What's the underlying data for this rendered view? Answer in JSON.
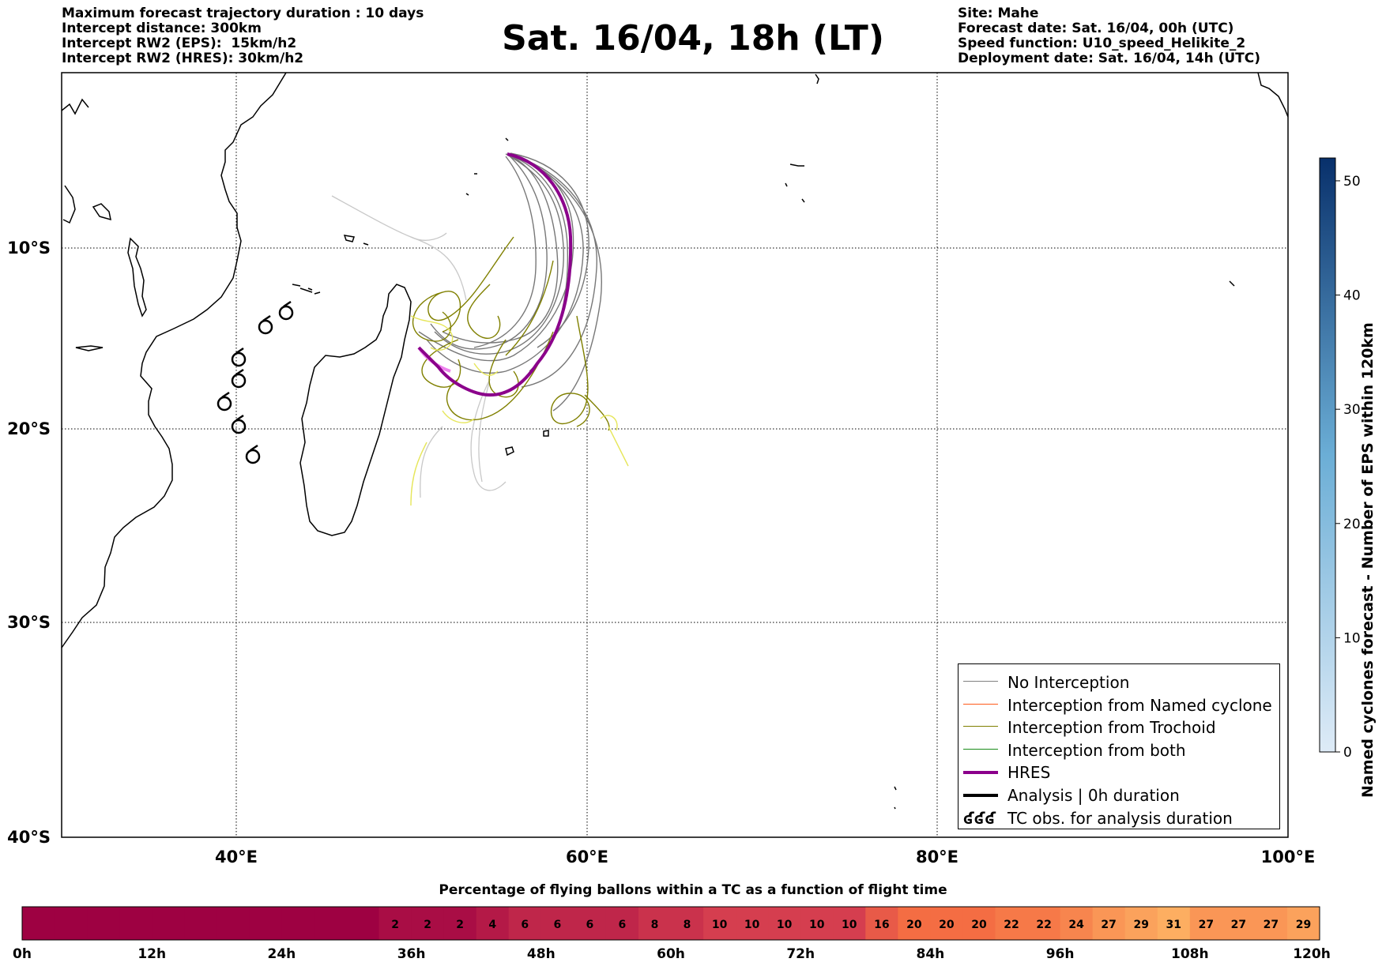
{
  "header_left": [
    "Maximum forecast trajectory duration : 10 days",
    "Intercept distance: 300km",
    "Intercept RW2 (EPS):  15km/h2",
    "Intercept RW2 (HRES): 30km/h2"
  ],
  "header_right": [
    "Site: Mahe",
    "Forecast date: Sat. 16/04, 00h (UTC)",
    "Speed function: U10_speed_Helikite_2",
    "Deployment date: Sat. 16/04, 14h (UTC)"
  ],
  "title": "Sat. 16/04, 18h (LT)",
  "map": {
    "lat_labels": [
      "10°S",
      "20°S",
      "30°S",
      "40°S"
    ],
    "lon_labels": [
      "40°E",
      "60°E",
      "80°E",
      "100°E"
    ],
    "lat_values": [
      -10,
      -20,
      -30,
      -40
    ],
    "lon_values": [
      40,
      60,
      80,
      100
    ],
    "extent": {
      "lon_min": 30,
      "lon_max": 100,
      "lat_min": -40,
      "lat_max": -0.5
    }
  },
  "legend": [
    {
      "label": "No Interception",
      "color": "#808080",
      "style": "thin"
    },
    {
      "label": "Interception from Named cyclone",
      "color": "#ff5a1a",
      "style": "thin"
    },
    {
      "label": "Interception from Trochoid",
      "color": "#808000",
      "style": "thin"
    },
    {
      "label": "Interception from both",
      "color": "#1a8c1a",
      "style": "thin"
    },
    {
      "label": "HRES",
      "color": "#8b008b",
      "style": "thick"
    },
    {
      "label": "Analysis | 0h duration",
      "color": "#000000",
      "style": "thick"
    },
    {
      "label": "TC obs. for analysis duration",
      "color": "#000000",
      "style": "symbol",
      "symbol_text": "ʛʛʛ"
    }
  ],
  "colorbar": {
    "title": "Named cyclones forecast - Number of EPS within 120km",
    "ticks": [
      "0",
      "10",
      "20",
      "30",
      "40",
      "50"
    ],
    "tick_values": [
      0,
      10,
      20,
      30,
      40,
      50
    ],
    "max": 52,
    "color_low": "#deebf7",
    "color_high": "#08306b"
  },
  "time_bar": {
    "title": "Percentage of flying ballons within a TC as a function of flight time",
    "tick_labels": [
      "0h",
      "12h",
      "24h",
      "36h",
      "48h",
      "60h",
      "72h",
      "84h",
      "96h",
      "108h",
      "120h"
    ],
    "tick_hours": [
      0,
      12,
      24,
      36,
      48,
      60,
      72,
      84,
      96,
      108,
      120
    ],
    "segment_hours": 3,
    "values": [
      0,
      0,
      0,
      0,
      0,
      0,
      0,
      0,
      0,
      0,
      0,
      2,
      2,
      2,
      4,
      6,
      6,
      6,
      6,
      8,
      8,
      10,
      10,
      10,
      10,
      10,
      16,
      20,
      20,
      20,
      22,
      22,
      24,
      27,
      29,
      31,
      27,
      27,
      27,
      29
    ]
  }
}
